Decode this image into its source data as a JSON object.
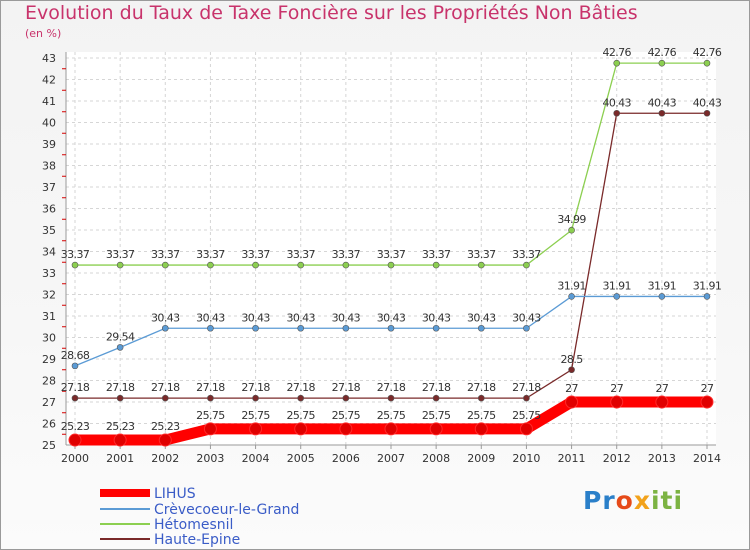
{
  "chart_data": {
    "type": "line",
    "title": "Evolution du Taux de Taxe Foncière sur les Propriétés Non Bâties",
    "ylabel": "(en %)",
    "xlabel": "",
    "ylim": [
      25,
      43
    ],
    "categories": [
      "2000",
      "2001",
      "2002",
      "2003",
      "2004",
      "2005",
      "2006",
      "2007",
      "2008",
      "2009",
      "2010",
      "2011",
      "2012",
      "2013",
      "2014"
    ],
    "y_ticks": [
      25,
      26,
      27,
      28,
      29,
      30,
      31,
      32,
      33,
      34,
      35,
      36,
      37,
      38,
      39,
      40,
      41,
      42,
      43
    ],
    "series": [
      {
        "name": "LIHUS",
        "color": "#ff0000",
        "values": [
          25.23,
          25.23,
          25.23,
          25.75,
          25.75,
          25.75,
          25.75,
          25.75,
          25.75,
          25.75,
          25.75,
          27,
          27,
          27,
          27
        ],
        "labels": [
          "25.23",
          "25.23",
          "25.23",
          "25.75",
          "25.75",
          "25.75",
          "25.75",
          "25.75",
          "25.75",
          "25.75",
          "25.75",
          "27",
          "27",
          "27",
          "27"
        ]
      },
      {
        "name": "Crèvecoeur-le-Grand",
        "color": "#5b9bd5",
        "values": [
          28.68,
          29.54,
          30.43,
          30.43,
          30.43,
          30.43,
          30.43,
          30.43,
          30.43,
          30.43,
          30.43,
          31.91,
          31.91,
          31.91,
          31.91
        ],
        "labels": [
          "28.68",
          "29.54",
          "30.43",
          "30.43",
          "30.43",
          "30.43",
          "30.43",
          "30.43",
          "30.43",
          "30.43",
          "30.43",
          "31.91",
          "31.91",
          "31.91",
          "31.91"
        ]
      },
      {
        "name": "Hétomesnil",
        "color": "#8ccf50",
        "values": [
          33.37,
          33.37,
          33.37,
          33.37,
          33.37,
          33.37,
          33.37,
          33.37,
          33.37,
          33.37,
          33.37,
          34.99,
          42.76,
          42.76,
          42.76
        ],
        "labels": [
          "33.37",
          "33.37",
          "33.37",
          "33.37",
          "33.37",
          "33.37",
          "33.37",
          "33.37",
          "33.37",
          "33.37",
          "33.37",
          "34.99",
          "42.76",
          "42.76",
          "42.76"
        ]
      },
      {
        "name": "Haute-Epine",
        "color": "#7a2a2a",
        "values": [
          27.18,
          27.18,
          27.18,
          27.18,
          27.18,
          27.18,
          27.18,
          27.18,
          27.18,
          27.18,
          27.18,
          28.5,
          40.43,
          40.43,
          40.43
        ],
        "labels": [
          "27.18",
          "27.18",
          "27.18",
          "27.18",
          "27.18",
          "27.18",
          "27.18",
          "27.18",
          "27.18",
          "27.18",
          "27.18",
          "28.5",
          "40.43",
          "40.43",
          "40.43"
        ]
      }
    ],
    "grid": true,
    "legend_position": "bottom-left"
  },
  "logo": {
    "p1": "Pr",
    "p2": "o",
    "p3": "x",
    "p4": "iti"
  }
}
